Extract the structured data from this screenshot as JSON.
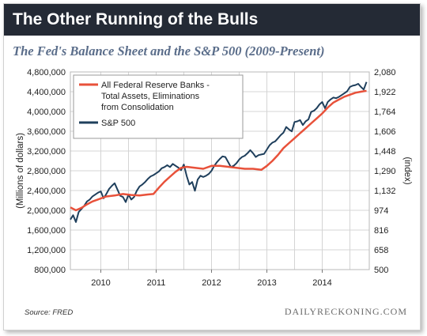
{
  "header": {
    "title": "The Other Running of the Bulls",
    "subtitle": "The Fed's Balance Sheet and the S&P 500 (2009-Present)"
  },
  "footer": {
    "source": "Source: FRED",
    "brand": "DAILYRECKONING.COM"
  },
  "colors": {
    "fed": "#e8513a",
    "sp500": "#1f3f5c",
    "title_bg": "#242a35",
    "subtitle": "#5a6d8a"
  },
  "chart_data": {
    "type": "line",
    "ylabel_left": "(Millions of dollars)",
    "ylabel_right": "(index)",
    "x_ticks": [
      "2010",
      "2011",
      "2012",
      "2013",
      "2014"
    ],
    "xlim": [
      2009.45,
      2014.85
    ],
    "y_left_ticks": [
      "4,800,000",
      "4,400,000",
      "4,000,000",
      "3,600,000",
      "3,200,000",
      "2,800,000",
      "2,400,000",
      "2,000,000",
      "1,600,000",
      "1,200,000",
      "800,000"
    ],
    "y_left_lim": [
      800000,
      4800000
    ],
    "y_right_ticks": [
      "2,080",
      "1,922",
      "1,764",
      "1,606",
      "1,448",
      "1,290",
      "1,132",
      "974",
      "816",
      "658",
      "500"
    ],
    "y_right_lim": [
      500,
      2080
    ],
    "grid": true,
    "legend_position": "top-left",
    "series": [
      {
        "name": "All Federal Reserve Banks - Total Assets, Eliminations from Consolidation",
        "axis": "left",
        "x": [
          2009.45,
          2009.55,
          2009.65,
          2009.75,
          2009.85,
          2009.95,
          2010.1,
          2010.25,
          2010.4,
          2010.55,
          2010.7,
          2010.85,
          2010.95,
          2011.05,
          2011.15,
          2011.25,
          2011.35,
          2011.45,
          2011.55,
          2011.7,
          2011.85,
          2012.0,
          2012.15,
          2012.3,
          2012.45,
          2012.6,
          2012.75,
          2012.9,
          2013.0,
          2013.1,
          2013.2,
          2013.3,
          2013.4,
          2013.5,
          2013.6,
          2013.7,
          2013.8,
          2013.9,
          2014.0,
          2014.1,
          2014.2,
          2014.3,
          2014.4,
          2014.5,
          2014.6,
          2014.7,
          2014.8
        ],
        "y": [
          2060000,
          2000000,
          2050000,
          2120000,
          2180000,
          2220000,
          2280000,
          2300000,
          2330000,
          2310000,
          2300000,
          2320000,
          2330000,
          2460000,
          2580000,
          2680000,
          2780000,
          2860000,
          2880000,
          2860000,
          2840000,
          2900000,
          2900000,
          2880000,
          2860000,
          2840000,
          2840000,
          2820000,
          2900000,
          3000000,
          3120000,
          3260000,
          3360000,
          3460000,
          3560000,
          3660000,
          3760000,
          3860000,
          3960000,
          4080000,
          4180000,
          4240000,
          4300000,
          4340000,
          4380000,
          4400000,
          4420000
        ]
      },
      {
        "name": "S&P 500",
        "axis": "right",
        "x": [
          2009.45,
          2009.5,
          2009.55,
          2009.6,
          2009.65,
          2009.7,
          2009.75,
          2009.8,
          2009.85,
          2009.9,
          2009.95,
          2010.0,
          2010.05,
          2010.1,
          2010.15,
          2010.2,
          2010.25,
          2010.3,
          2010.35,
          2010.4,
          2010.45,
          2010.5,
          2010.55,
          2010.6,
          2010.65,
          2010.7,
          2010.75,
          2010.8,
          2010.85,
          2010.9,
          2010.95,
          2011.0,
          2011.05,
          2011.1,
          2011.15,
          2011.2,
          2011.25,
          2011.3,
          2011.35,
          2011.4,
          2011.45,
          2011.5,
          2011.55,
          2011.6,
          2011.65,
          2011.7,
          2011.75,
          2011.8,
          2011.85,
          2011.9,
          2011.95,
          2012.0,
          2012.05,
          2012.1,
          2012.15,
          2012.2,
          2012.25,
          2012.3,
          2012.35,
          2012.4,
          2012.45,
          2012.5,
          2012.55,
          2012.6,
          2012.65,
          2012.7,
          2012.75,
          2012.8,
          2012.85,
          2012.9,
          2012.95,
          2013.0,
          2013.05,
          2013.1,
          2013.15,
          2013.2,
          2013.25,
          2013.3,
          2013.35,
          2013.4,
          2013.45,
          2013.5,
          2013.55,
          2013.6,
          2013.65,
          2013.7,
          2013.75,
          2013.8,
          2013.85,
          2013.9,
          2013.95,
          2014.0,
          2014.05,
          2014.1,
          2014.15,
          2014.2,
          2014.25,
          2014.3,
          2014.35,
          2014.4,
          2014.45,
          2014.5,
          2014.55,
          2014.6,
          2014.65,
          2014.7,
          2014.75,
          2014.8
        ],
        "y": [
          900,
          935,
          880,
          960,
          985,
          1010,
          1045,
          1060,
          1085,
          1100,
          1115,
          1125,
          1070,
          1105,
          1145,
          1170,
          1190,
          1140,
          1090,
          1080,
          1040,
          1100,
          1060,
          1080,
          1130,
          1165,
          1180,
          1200,
          1225,
          1245,
          1255,
          1270,
          1285,
          1310,
          1320,
          1335,
          1320,
          1345,
          1330,
          1315,
          1295,
          1340,
          1250,
          1180,
          1200,
          1130,
          1220,
          1250,
          1240,
          1250,
          1265,
          1290,
          1330,
          1360,
          1385,
          1405,
          1400,
          1360,
          1320,
          1330,
          1350,
          1380,
          1400,
          1410,
          1430,
          1455,
          1430,
          1400,
          1415,
          1420,
          1425,
          1460,
          1495,
          1515,
          1525,
          1550,
          1575,
          1595,
          1640,
          1620,
          1605,
          1680,
          1685,
          1695,
          1655,
          1685,
          1700,
          1760,
          1770,
          1790,
          1820,
          1840,
          1790,
          1840,
          1860,
          1875,
          1870,
          1880,
          1895,
          1910,
          1925,
          1960,
          1970,
          1975,
          1985,
          1960,
          1940,
          2000
        ]
      }
    ]
  }
}
